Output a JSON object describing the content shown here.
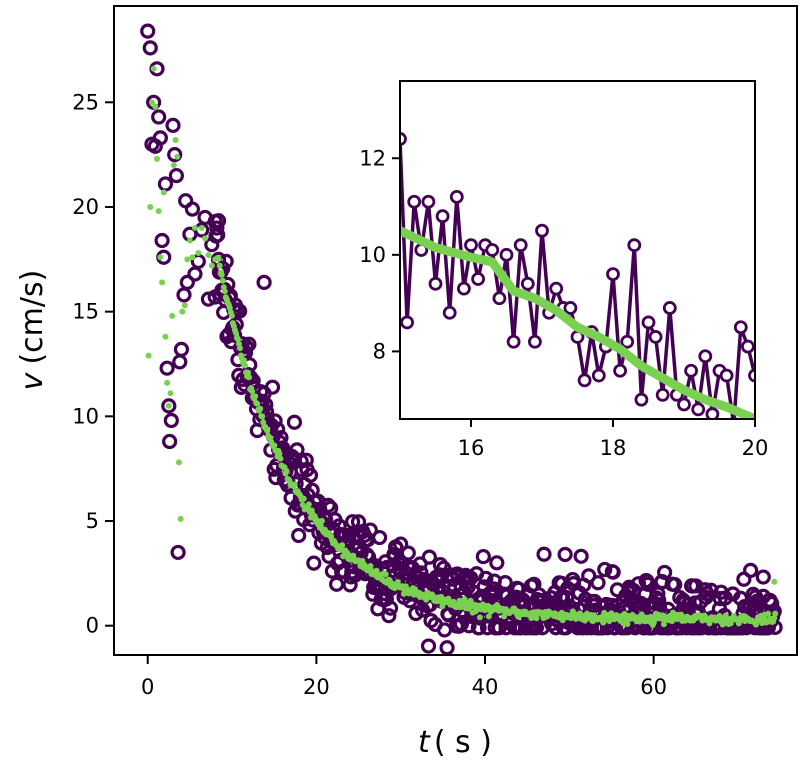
{
  "chart_data": [
    {
      "type": "scatter",
      "title": "",
      "xlabel": {
        "symbol": "t",
        "unit": "( s )"
      },
      "ylabel": {
        "symbol": "v",
        "unit": "(cm/s)"
      },
      "xlim": [
        -4,
        77
      ],
      "ylim": [
        -1.4,
        29.6
      ],
      "xticks": [
        0,
        20,
        40,
        60
      ],
      "yticks": [
        0,
        5,
        10,
        15,
        20,
        25
      ],
      "xtick_labels": [
        "0",
        "20",
        "40",
        "60"
      ],
      "ytick_labels": [
        "0",
        "5",
        "10",
        "15",
        "20",
        "25"
      ],
      "grid": false,
      "series": [
        {
          "role": "raw",
          "marker": "open-circle",
          "color": "#440154",
          "points": [
            [
              0.0,
              28.4
            ],
            [
              0.3,
              27.6
            ],
            [
              0.5,
              23.0
            ],
            [
              0.7,
              25.0
            ],
            [
              0.9,
              22.9
            ],
            [
              1.1,
              26.6
            ],
            [
              1.3,
              24.3
            ],
            [
              1.5,
              23.3
            ],
            [
              1.7,
              18.4
            ],
            [
              1.9,
              17.6
            ],
            [
              2.1,
              21.1
            ],
            [
              2.3,
              12.3
            ],
            [
              2.5,
              10.5
            ],
            [
              2.6,
              8.8
            ],
            [
              2.8,
              9.8
            ],
            [
              3.0,
              23.9
            ],
            [
              3.2,
              22.5
            ],
            [
              3.4,
              21.5
            ],
            [
              3.6,
              3.5
            ],
            [
              3.8,
              12.6
            ],
            [
              4.0,
              13.2
            ],
            [
              4.3,
              15.8
            ],
            [
              4.5,
              20.3
            ],
            [
              4.7,
              16.4
            ],
            [
              5.0,
              18.7
            ],
            [
              5.3,
              19.9
            ],
            [
              5.6,
              16.8
            ],
            [
              6.0,
              17.4
            ],
            [
              6.4,
              18.9
            ],
            [
              6.8,
              19.5
            ],
            [
              7.2,
              15.6
            ],
            [
              7.6,
              18.2
            ],
            [
              8.0,
              15.7
            ],
            [
              8.4,
              17.5
            ],
            [
              13.8,
              16.4
            ],
            [
              39.0,
              0.8
            ],
            [
              41.0,
              1.6
            ],
            [
              45.5,
              1.9
            ],
            [
              49.5,
              3.4
            ],
            [
              55.0,
              0.2
            ],
            [
              59.0,
              1.5
            ],
            [
              64.0,
              0.2
            ],
            [
              68.0,
              1.6
            ],
            [
              73.0,
              1.4
            ]
          ],
          "trend": {
            "form": "exponential-decay",
            "start_t": 8.0,
            "start_v": 18.0,
            "plateau_v": 0.35,
            "tau_s": 9.5,
            "scatter_sd_cm_s": 0.9,
            "t_end": 74.5
          }
        },
        {
          "role": "smoothed",
          "marker": "filled-dot",
          "color": "#7ad151",
          "points": [
            [
              0.1,
              12.9
            ],
            [
              0.3,
              20.0
            ],
            [
              0.5,
              25.0
            ],
            [
              0.7,
              26.6
            ],
            [
              0.9,
              24.8
            ],
            [
              1.1,
              22.3
            ],
            [
              1.3,
              19.8
            ],
            [
              1.5,
              17.6
            ],
            [
              1.7,
              16.4
            ],
            [
              1.9,
              20.7
            ],
            [
              2.1,
              13.8
            ],
            [
              2.3,
              11.6
            ],
            [
              2.5,
              10.5
            ],
            [
              2.7,
              11.1
            ],
            [
              2.9,
              14.8
            ],
            [
              3.1,
              22.0
            ],
            [
              3.3,
              23.2
            ],
            [
              3.5,
              22.4
            ],
            [
              3.7,
              7.8
            ],
            [
              3.9,
              5.1
            ],
            [
              4.1,
              15.0
            ],
            [
              4.4,
              15.3
            ],
            [
              4.7,
              17.5
            ],
            [
              5.0,
              18.4
            ],
            [
              5.3,
              17.6
            ],
            [
              5.6,
              19.0
            ],
            [
              6.0,
              17.8
            ],
            [
              6.4,
              19.0
            ],
            [
              6.8,
              18.5
            ],
            [
              7.2,
              17.7
            ],
            [
              7.6,
              17.2
            ],
            [
              8.0,
              17.5
            ],
            [
              38.8,
              0.9
            ],
            [
              39.4,
              0.4
            ],
            [
              74.3,
              2.1
            ]
          ],
          "trend": {
            "form": "exponential-decay",
            "start_t": 8.3,
            "start_v": 17.6,
            "plateau_v": 0.3,
            "tau_s": 9.0,
            "t_end": 74.5
          }
        }
      ]
    },
    {
      "type": "line",
      "inset": true,
      "title": "",
      "xlim": [
        15,
        20
      ],
      "ylim": [
        6.6,
        13.6
      ],
      "xticks": [
        16,
        18,
        20
      ],
      "yticks": [
        8,
        10,
        12
      ],
      "xtick_labels": [
        "16",
        "18",
        "20"
      ],
      "ytick_labels": [
        "8",
        "10",
        "12"
      ],
      "grid": false,
      "series": [
        {
          "role": "raw",
          "marker": "open-circle",
          "color": "#440154",
          "x": [
            15.0,
            15.1,
            15.2,
            15.3,
            15.4,
            15.5,
            15.6,
            15.7,
            15.8,
            15.9,
            16.0,
            16.1,
            16.2,
            16.3,
            16.4,
            16.5,
            16.6,
            16.7,
            16.8,
            16.9,
            17.0,
            17.1,
            17.2,
            17.3,
            17.4,
            17.5,
            17.6,
            17.7,
            17.8,
            17.9,
            18.0,
            18.1,
            18.2,
            18.3,
            18.4,
            18.5,
            18.6,
            18.7,
            18.8,
            18.9,
            19.0,
            19.1,
            19.2,
            19.3,
            19.4,
            19.5,
            19.6,
            19.7,
            19.8,
            19.9,
            20.0
          ],
          "values": [
            12.4,
            8.6,
            11.1,
            10.1,
            11.1,
            9.4,
            10.8,
            8.8,
            11.2,
            9.3,
            10.2,
            9.5,
            10.2,
            10.1,
            9.1,
            10.0,
            8.2,
            10.2,
            9.4,
            8.2,
            10.5,
            8.8,
            9.3,
            8.9,
            8.9,
            8.3,
            7.4,
            8.4,
            7.5,
            8.1,
            9.6,
            7.6,
            8.2,
            10.2,
            7.0,
            8.6,
            8.3,
            7.1,
            8.9,
            7.1,
            6.9,
            7.6,
            6.8,
            7.9,
            6.7,
            7.6,
            7.5,
            6.5,
            8.5,
            8.1,
            7.5
          ]
        },
        {
          "role": "smoothed",
          "marker": "filled-dot",
          "color": "#7ad151",
          "x": [
            15.0,
            15.5,
            16.0,
            16.3,
            16.6,
            16.9,
            17.2,
            17.5,
            17.8,
            18.1,
            18.4,
            18.7,
            19.0,
            19.3,
            19.6,
            20.0
          ],
          "values": [
            10.5,
            10.15,
            9.95,
            9.85,
            9.25,
            9.1,
            8.85,
            8.5,
            8.3,
            8.05,
            7.7,
            7.45,
            7.2,
            7.0,
            6.85,
            6.6
          ]
        }
      ]
    }
  ]
}
